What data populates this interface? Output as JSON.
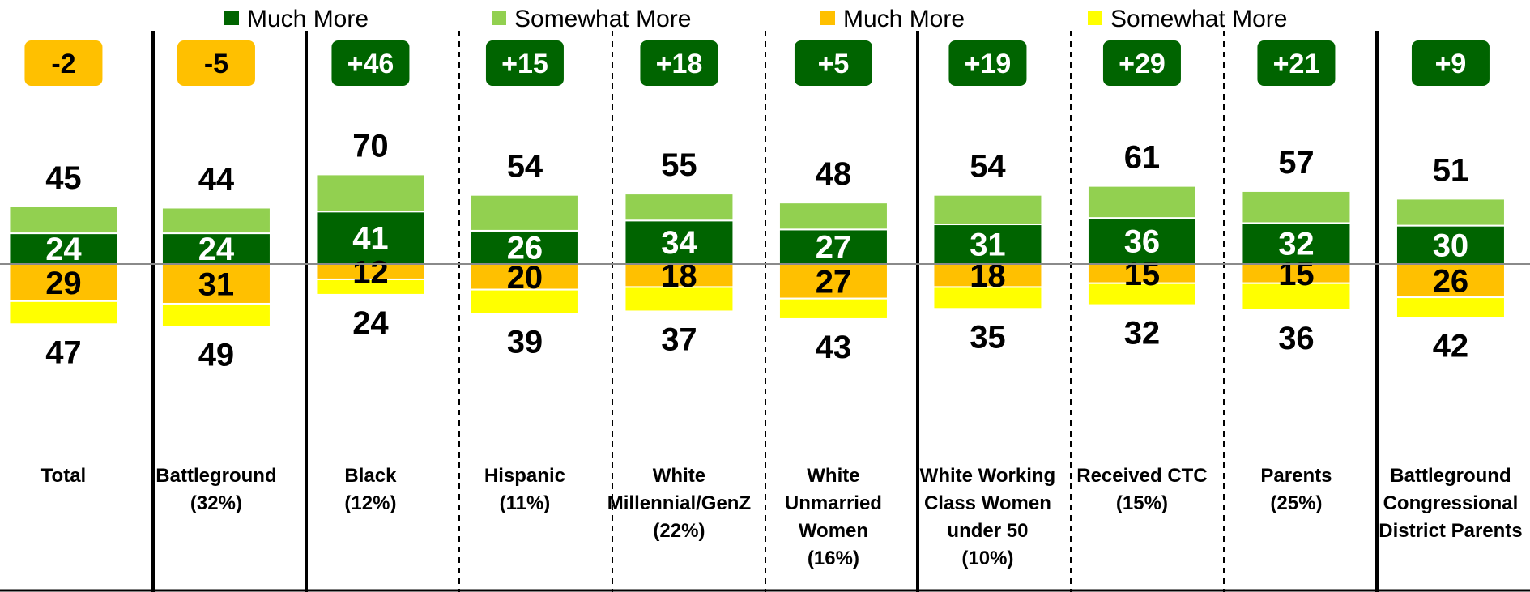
{
  "chart_data": {
    "type": "bar",
    "subtype": "diverging-stacked-bar",
    "legend": {
      "placement": "top",
      "items": [
        {
          "label": "Much More",
          "color": "#006400"
        },
        {
          "label": "Somewhat More",
          "color": "#92D050"
        },
        {
          "label": "Much More",
          "color": "#FFC000"
        },
        {
          "label": "Somewhat More",
          "color": "#FFFF00"
        }
      ]
    },
    "colors": {
      "positive_strong": "#006400",
      "positive_weak": "#92D050",
      "negative_strong": "#FFC000",
      "negative_weak": "#FFFF00",
      "net_positive_badge": "#006400",
      "net_negative_badge": "#FFC000"
    },
    "categories": [
      {
        "label_lines": [
          "Total"
        ],
        "net": "-2",
        "pos_much": 24,
        "pos_total": 45,
        "neg_much": 29,
        "neg_total": 47
      },
      {
        "label_lines": [
          "Battleground",
          "(32%)"
        ],
        "net": "-5",
        "pos_much": 24,
        "pos_total": 44,
        "neg_much": 31,
        "neg_total": 49
      },
      {
        "label_lines": [
          "Black",
          "(12%)"
        ],
        "net": "+46",
        "pos_much": 41,
        "pos_total": 70,
        "neg_much": 12,
        "neg_total": 24
      },
      {
        "label_lines": [
          "Hispanic",
          "(11%)"
        ],
        "net": "+15",
        "pos_much": 26,
        "pos_total": 54,
        "neg_much": 20,
        "neg_total": 39
      },
      {
        "label_lines": [
          "White",
          "Millennial/GenZ",
          "(22%)"
        ],
        "net": "+18",
        "pos_much": 34,
        "pos_total": 55,
        "neg_much": 18,
        "neg_total": 37
      },
      {
        "label_lines": [
          "White",
          "Unmarried",
          "Women",
          "(16%)"
        ],
        "net": "+5",
        "pos_much": 27,
        "pos_total": 48,
        "neg_much": 27,
        "neg_total": 43
      },
      {
        "label_lines": [
          "White Working",
          "Class Women",
          "under 50",
          "(10%)"
        ],
        "net": "+19",
        "pos_much": 31,
        "pos_total": 54,
        "neg_much": 18,
        "neg_total": 35
      },
      {
        "label_lines": [
          "Received CTC",
          "(15%)"
        ],
        "net": "+29",
        "pos_much": 36,
        "pos_total": 61,
        "neg_much": 15,
        "neg_total": 32
      },
      {
        "label_lines": [
          "Parents",
          "(25%)"
        ],
        "net": "+21",
        "pos_much": 32,
        "pos_total": 57,
        "neg_much": 15,
        "neg_total": 36
      },
      {
        "label_lines": [
          "Battleground",
          "Congressional",
          "District Parents"
        ],
        "net": "+9",
        "pos_much": 30,
        "pos_total": 51,
        "neg_much": 26,
        "neg_total": 42
      }
    ],
    "separators": [
      "solid",
      "solid",
      "dashed",
      "dashed",
      "dashed",
      "solid",
      "dashed",
      "dashed",
      "solid"
    ]
  }
}
